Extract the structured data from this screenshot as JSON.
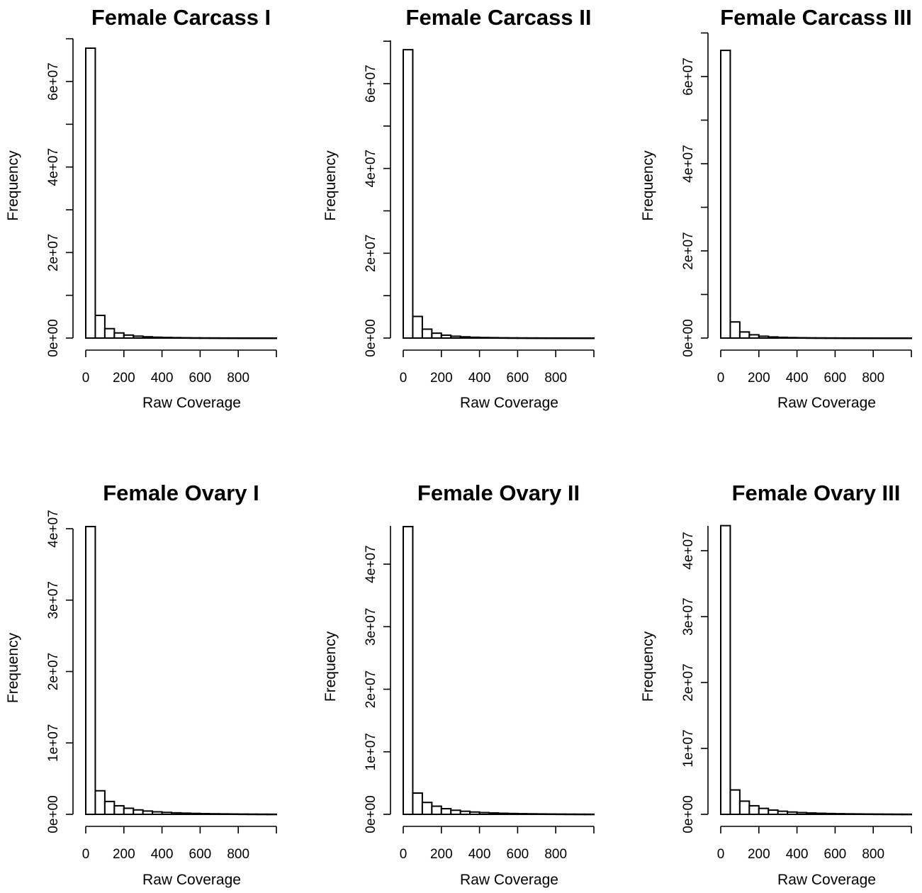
{
  "chart_data": [
    {
      "type": "bar",
      "title": "Female Carcass I",
      "xlabel": "Raw Coverage",
      "ylabel": "Frequency",
      "bin_width": 50,
      "xlim": [
        0,
        1000
      ],
      "x_ticks": [
        0,
        200,
        400,
        600,
        800
      ],
      "x_tick_labels": [
        "0",
        "200",
        "400",
        "600",
        "800"
      ],
      "ylim": [
        0,
        70000000
      ],
      "y_ticks": [
        0,
        10000000,
        20000000,
        30000000,
        40000000,
        50000000,
        60000000,
        70000000
      ],
      "y_tick_labels": [
        "0e+00",
        "",
        "2e+07",
        "",
        "4e+07",
        "",
        "6e+07",
        ""
      ],
      "values": [
        67800000,
        5300000,
        2200000,
        1200000,
        700000,
        450000,
        300000,
        200000,
        140000,
        100000,
        70000,
        50000,
        36000,
        26000,
        19000,
        14000,
        10000,
        7000,
        5000,
        3500
      ]
    },
    {
      "type": "bar",
      "title": "Female Carcass II",
      "xlabel": "Raw Coverage",
      "ylabel": "Frequency",
      "bin_width": 50,
      "xlim": [
        0,
        1000
      ],
      "x_ticks": [
        0,
        200,
        400,
        600,
        800
      ],
      "x_tick_labels": [
        "0",
        "200",
        "400",
        "600",
        "800"
      ],
      "ylim": [
        0,
        70000000
      ],
      "y_ticks": [
        0,
        10000000,
        20000000,
        30000000,
        40000000,
        50000000,
        60000000,
        70000000
      ],
      "y_tick_labels": [
        "0e+00",
        "",
        "2e+07",
        "",
        "4e+07",
        "",
        "6e+07",
        ""
      ],
      "values": [
        68000000,
        5100000,
        2100000,
        1150000,
        680000,
        430000,
        290000,
        190000,
        130000,
        95000,
        66000,
        47000,
        34000,
        24000,
        17000,
        12000,
        9000,
        6500,
        4500,
        3000
      ]
    },
    {
      "type": "bar",
      "title": "Female Carcass III",
      "xlabel": "Raw Coverage",
      "ylabel": "Frequency",
      "bin_width": 50,
      "xlim": [
        0,
        1000
      ],
      "x_ticks": [
        0,
        200,
        400,
        600,
        800
      ],
      "x_tick_labels": [
        "0",
        "200",
        "400",
        "600",
        "800"
      ],
      "ylim": [
        0,
        70000000
      ],
      "y_ticks": [
        0,
        10000000,
        20000000,
        30000000,
        40000000,
        50000000,
        60000000,
        70000000
      ],
      "y_tick_labels": [
        "0e+00",
        "",
        "2e+07",
        "",
        "4e+07",
        "",
        "6e+07",
        ""
      ],
      "values": [
        66000000,
        3700000,
        1400000,
        750000,
        420000,
        260000,
        170000,
        110000,
        75000,
        52000,
        36000,
        26000,
        18000,
        13000,
        9000,
        6500,
        4500,
        3200,
        2200,
        1500
      ]
    },
    {
      "type": "bar",
      "title": "Female Ovary I",
      "xlabel": "Raw Coverage",
      "ylabel": "Frequency",
      "bin_width": 50,
      "xlim": [
        0,
        1000
      ],
      "x_ticks": [
        0,
        200,
        400,
        600,
        800
      ],
      "x_tick_labels": [
        "0",
        "200",
        "400",
        "600",
        "800"
      ],
      "ylim": [
        0,
        40000000
      ],
      "y_ticks": [
        0,
        10000000,
        20000000,
        30000000,
        40000000
      ],
      "y_tick_labels": [
        "0e+00",
        "1e+07",
        "2e+07",
        "3e+07",
        "4e+07"
      ],
      "values": [
        40300000,
        3300000,
        1800000,
        1200000,
        850000,
        620000,
        460000,
        350000,
        270000,
        210000,
        165000,
        130000,
        100000,
        80000,
        62000,
        48000,
        38000,
        30000,
        23000,
        18000
      ]
    },
    {
      "type": "bar",
      "title": "Female Ovary II",
      "xlabel": "Raw Coverage",
      "ylabel": "Frequency",
      "bin_width": 50,
      "xlim": [
        0,
        1000
      ],
      "x_ticks": [
        0,
        200,
        400,
        600,
        800
      ],
      "x_tick_labels": [
        "0",
        "200",
        "400",
        "600",
        "800"
      ],
      "ylim": [
        0,
        40000000
      ],
      "y_ticks": [
        0,
        10000000,
        20000000,
        30000000,
        40000000
      ],
      "y_tick_labels": [
        "0e+00",
        "1e+07",
        "2e+07",
        "3e+07",
        "4e+07"
      ],
      "values": [
        46000000,
        3400000,
        1900000,
        1300000,
        900000,
        650000,
        490000,
        370000,
        280000,
        220000,
        170000,
        135000,
        105000,
        83000,
        65000,
        50000,
        40000,
        31000,
        24000,
        19000
      ]
    },
    {
      "type": "bar",
      "title": "Female Ovary III",
      "xlabel": "Raw Coverage",
      "ylabel": "Frequency",
      "bin_width": 50,
      "xlim": [
        0,
        1000
      ],
      "x_ticks": [
        0,
        200,
        400,
        600,
        800
      ],
      "x_tick_labels": [
        "0",
        "200",
        "400",
        "600",
        "800"
      ],
      "ylim": [
        0,
        40000000
      ],
      "y_ticks": [
        0,
        10000000,
        20000000,
        30000000,
        40000000
      ],
      "y_tick_labels": [
        "0e+00",
        "1e+07",
        "2e+07",
        "3e+07",
        "4e+07"
      ],
      "values": [
        43800000,
        3700000,
        2000000,
        1300000,
        900000,
        640000,
        470000,
        350000,
        265000,
        205000,
        160000,
        125000,
        97000,
        76000,
        60000,
        47000,
        37000,
        29000,
        22000,
        17000
      ]
    }
  ]
}
